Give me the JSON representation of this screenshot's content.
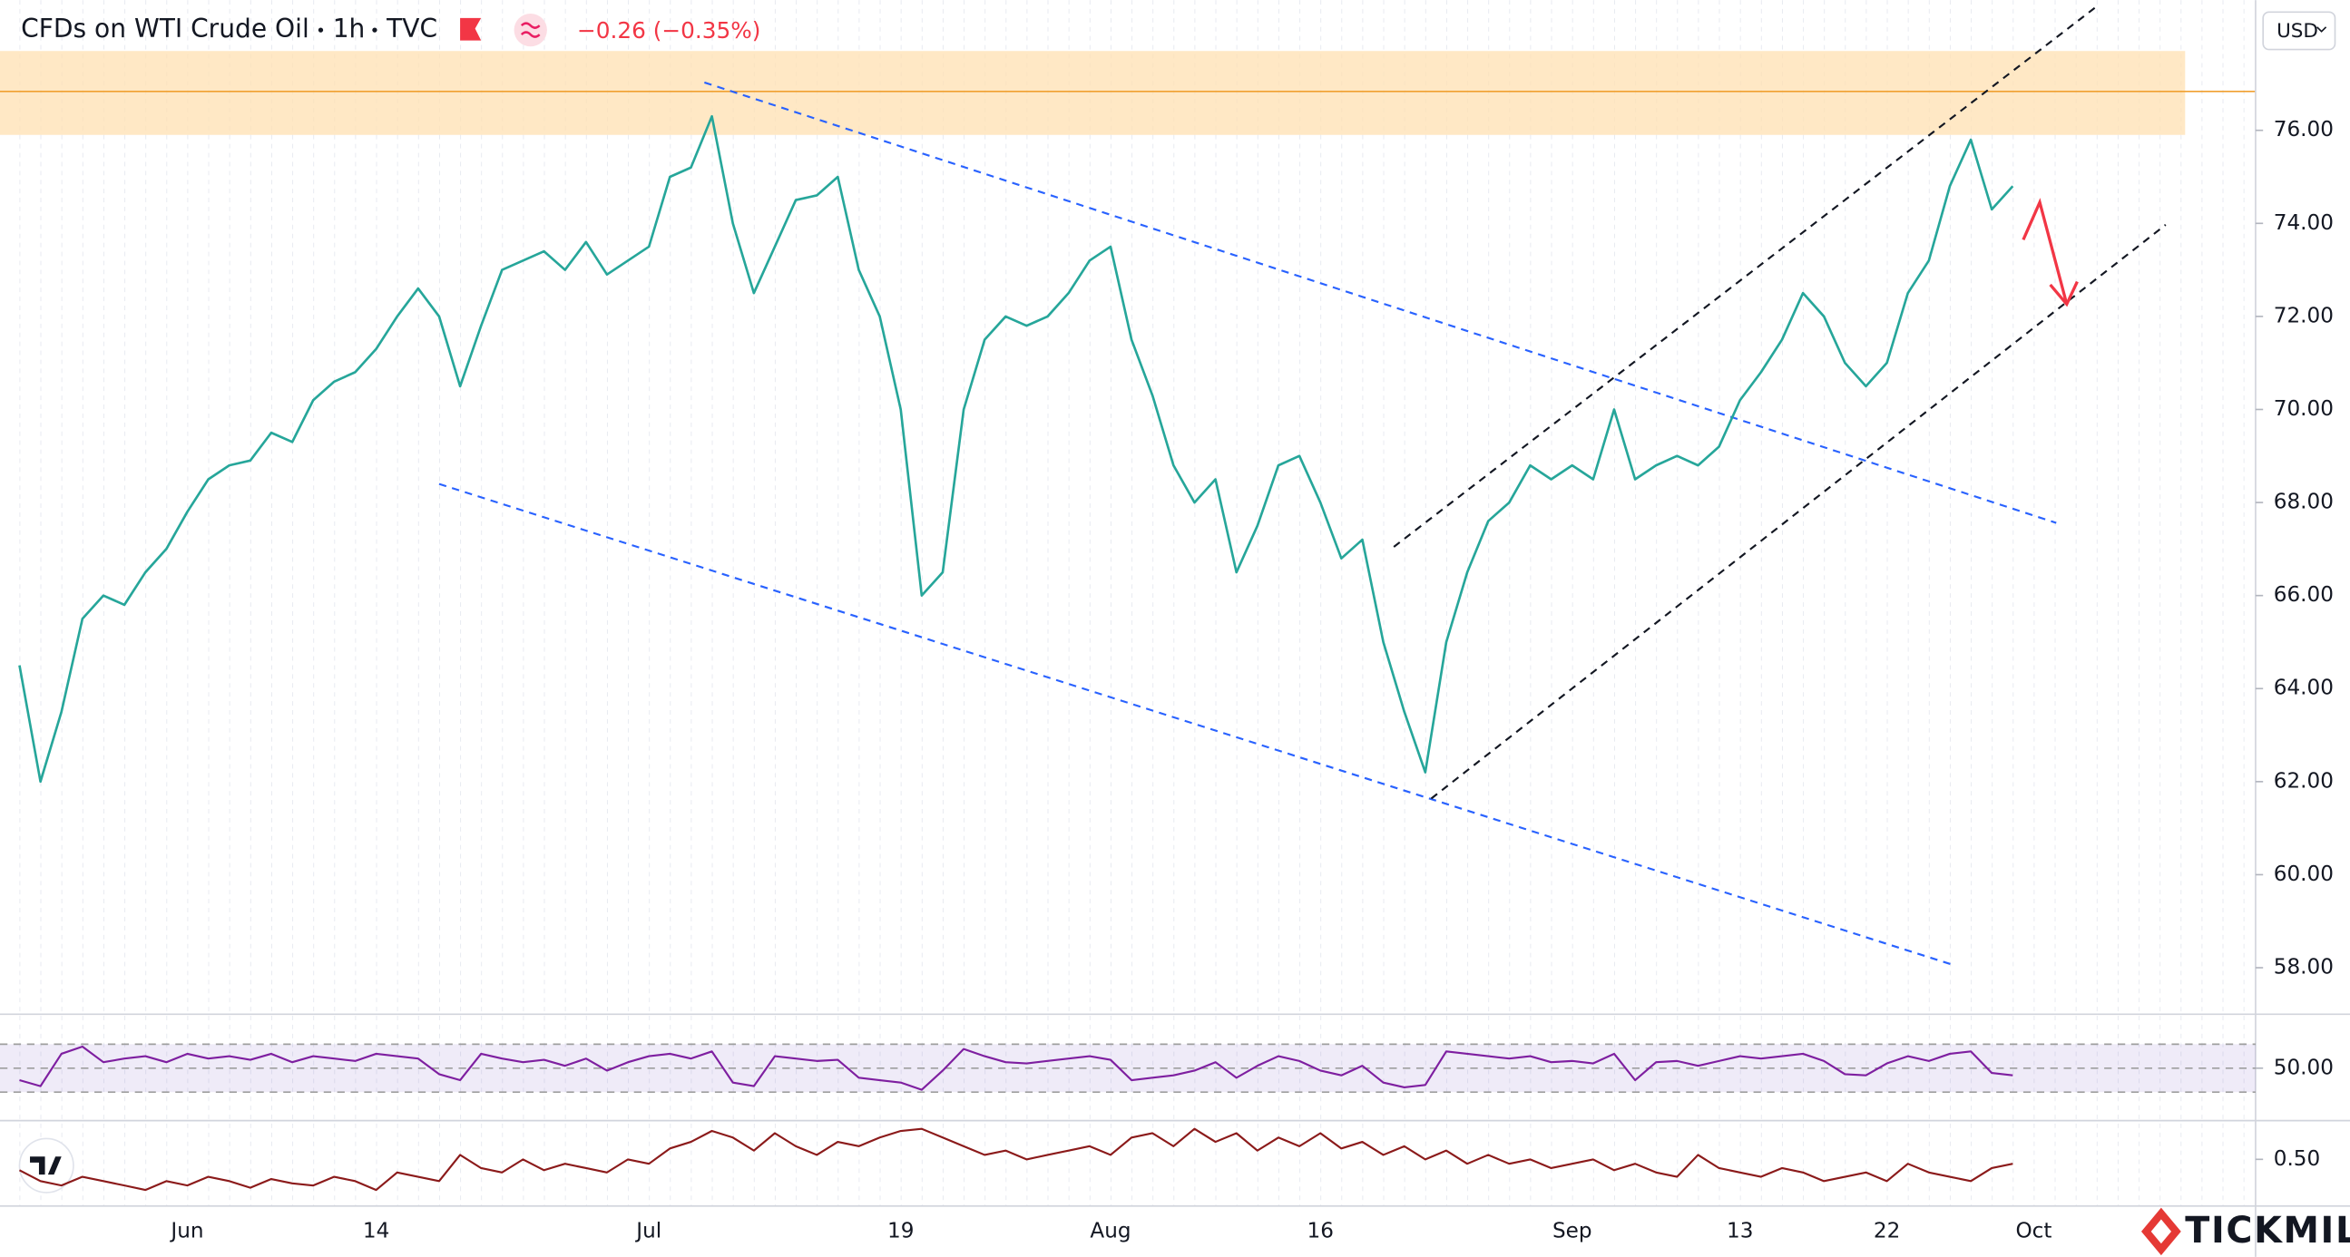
{
  "brand": "TICKMILL",
  "chart_data": [
    {
      "type": "line",
      "title": "CFDs on WTI Crude Oil",
      "interval": "1h",
      "source": "TVC",
      "change": "−0.26 (−0.35%)",
      "currency": "USD",
      "color": "#26a69a",
      "grid": false,
      "categories": [
        null,
        null,
        null,
        null,
        null,
        null,
        null,
        null,
        "Jun",
        null,
        null,
        null,
        null,
        null,
        null,
        null,
        null,
        "14",
        null,
        null,
        null,
        null,
        null,
        null,
        null,
        null,
        null,
        null,
        null,
        null,
        "Jul",
        null,
        null,
        null,
        null,
        null,
        null,
        null,
        null,
        null,
        null,
        null,
        "19",
        null,
        null,
        null,
        null,
        null,
        null,
        null,
        null,
        null,
        "Aug",
        null,
        null,
        null,
        null,
        null,
        null,
        null,
        null,
        null,
        "16",
        null,
        null,
        null,
        null,
        null,
        null,
        null,
        null,
        null,
        null,
        null,
        "Sep",
        null,
        null,
        null,
        null,
        null,
        null,
        null,
        "13",
        null,
        null,
        null,
        null,
        null,
        null,
        "22",
        null,
        null,
        null,
        null,
        null,
        null,
        "Oct"
      ],
      "values": [
        64.5,
        62.0,
        63.5,
        65.5,
        66.0,
        65.8,
        66.5,
        67.0,
        67.8,
        68.5,
        68.8,
        68.9,
        69.5,
        69.3,
        70.2,
        70.6,
        70.8,
        71.3,
        72.0,
        72.6,
        72.0,
        70.5,
        71.8,
        73.0,
        73.2,
        73.4,
        73.0,
        73.6,
        72.9,
        73.2,
        73.5,
        75.0,
        75.2,
        76.3,
        74.0,
        72.5,
        73.5,
        74.5,
        74.6,
        75.0,
        73.0,
        72.0,
        70.0,
        66.0,
        66.5,
        70.0,
        71.5,
        72.0,
        71.8,
        72.0,
        72.5,
        73.2,
        73.5,
        71.5,
        70.3,
        68.8,
        68.0,
        68.5,
        66.5,
        67.5,
        68.8,
        69.0,
        68.0,
        66.8,
        67.2,
        65.0,
        63.5,
        62.2,
        65.0,
        66.5,
        67.6,
        68.0,
        68.8,
        68.5,
        68.8,
        68.5,
        70.0,
        68.5,
        68.8,
        69.0,
        68.8,
        69.2,
        70.2,
        70.8,
        71.5,
        72.5,
        72.0,
        71.0,
        70.5,
        71.0,
        72.5,
        73.2,
        74.8,
        75.8,
        74.3,
        74.8,
        null
      ],
      "ylim": [
        57,
        78.8
      ],
      "yticks": [
        {
          "value": 58,
          "label": "58.00"
        },
        {
          "value": 60,
          "label": "60.00"
        },
        {
          "value": 62,
          "label": "62.00"
        },
        {
          "value": 64,
          "label": "64.00"
        },
        {
          "value": 66,
          "label": "66.00"
        },
        {
          "value": 68,
          "label": "68.00"
        },
        {
          "value": 70,
          "label": "70.00"
        },
        {
          "value": 72,
          "label": "72.00"
        },
        {
          "value": 74,
          "label": "74.00"
        },
        {
          "value": 76,
          "label": "76.00"
        }
      ]
    },
    {
      "type": "line",
      "color": "#7e1fa0",
      "grid": true,
      "band": [
        30,
        70
      ],
      "values": [
        40,
        35,
        62,
        68,
        55,
        58,
        60,
        55,
        62,
        58,
        60,
        57,
        62,
        55,
        60,
        58,
        56,
        62,
        60,
        58,
        45,
        40,
        62,
        58,
        55,
        57,
        52,
        58,
        48,
        55,
        60,
        62,
        58,
        64,
        38,
        35,
        60,
        58,
        56,
        57,
        42,
        40,
        38,
        32,
        48,
        66,
        60,
        55,
        54,
        56,
        58,
        60,
        57,
        40,
        42,
        44,
        48,
        55,
        42,
        52,
        60,
        56,
        48,
        44,
        52,
        38,
        34,
        36,
        64,
        62,
        60,
        58,
        60,
        55,
        56,
        54,
        62,
        40,
        55,
        56,
        52,
        56,
        60,
        58,
        60,
        62,
        56,
        45,
        44,
        54,
        60,
        56,
        62,
        64,
        46,
        44,
        null
      ],
      "ylim": [
        10,
        87.5
      ],
      "yticks": [
        {
          "value": 50,
          "label": "50.00"
        }
      ]
    },
    {
      "type": "line",
      "color": "#8b1a1a",
      "grid": false,
      "values": [
        0.45,
        0.4,
        0.38,
        0.42,
        0.4,
        0.38,
        0.36,
        0.4,
        0.38,
        0.42,
        0.4,
        0.37,
        0.41,
        0.39,
        0.38,
        0.42,
        0.4,
        0.36,
        0.44,
        0.42,
        0.4,
        0.52,
        0.46,
        0.44,
        0.5,
        0.45,
        0.48,
        0.46,
        0.44,
        0.5,
        0.48,
        0.55,
        0.58,
        0.63,
        0.6,
        0.54,
        0.62,
        0.56,
        0.52,
        0.58,
        0.56,
        0.6,
        0.63,
        0.64,
        0.6,
        0.56,
        0.52,
        0.54,
        0.5,
        0.52,
        0.54,
        0.56,
        0.52,
        0.6,
        0.62,
        0.56,
        0.64,
        0.58,
        0.62,
        0.54,
        0.6,
        0.56,
        0.62,
        0.55,
        0.58,
        0.52,
        0.56,
        0.5,
        0.54,
        0.48,
        0.52,
        0.48,
        0.5,
        0.46,
        0.48,
        0.5,
        0.45,
        0.48,
        0.44,
        0.42,
        0.52,
        0.46,
        0.44,
        0.42,
        0.46,
        0.44,
        0.4,
        0.42,
        0.44,
        0.4,
        0.48,
        0.44,
        0.42,
        0.4,
        0.46,
        0.48,
        null
      ],
      "ylim": [
        0.3,
        0.65
      ],
      "yticks": [
        {
          "value": 0.5,
          "label": "0.50"
        }
      ]
    }
  ]
}
